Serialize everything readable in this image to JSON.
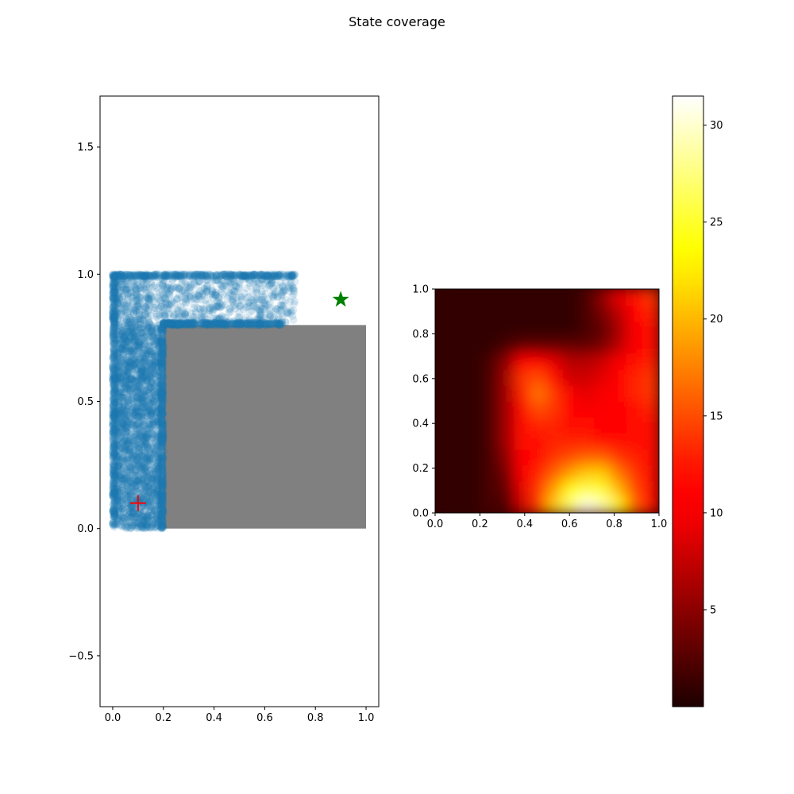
{
  "figure": {
    "suptitle": "State coverage"
  },
  "chart_data": [
    {
      "type": "scatter",
      "panel": "left",
      "title": "",
      "xlabel": "",
      "ylabel": "",
      "xlim": [
        -0.05,
        1.05
      ],
      "ylim": [
        -0.7,
        1.7
      ],
      "xticks": [
        0.0,
        0.2,
        0.4,
        0.6,
        0.8,
        1.0
      ],
      "xtick_labels": [
        "0.0",
        "0.2",
        "0.4",
        "0.6",
        "0.8",
        "1.0"
      ],
      "yticks": [
        -0.5,
        0.0,
        0.5,
        1.0,
        1.5
      ],
      "ytick_labels": [
        "−0.5",
        "0.0",
        "0.5",
        "1.0",
        "1.5"
      ],
      "grid": false,
      "colors": {
        "points": "#1f77b4",
        "obstacle": "#808080",
        "start": "#ff0000",
        "goal": "#008000"
      },
      "obstacle": {
        "x0": 0.2,
        "y0": 0.0,
        "x1": 1.0,
        "y1": 0.8
      },
      "start_marker": {
        "x": 0.1,
        "y": 0.1,
        "shape": "plus"
      },
      "goal_marker": {
        "x": 0.9,
        "y": 0.9,
        "shape": "star"
      },
      "visited_regions": [
        {
          "x0": 0.0,
          "x1": 0.2,
          "y0": 0.0,
          "y1": 0.8,
          "density": "dense"
        },
        {
          "x0": 0.0,
          "x1": 0.72,
          "y0": 0.8,
          "y1": 1.0,
          "density": "sparse"
        }
      ]
    },
    {
      "type": "heatmap",
      "panel": "right",
      "title": "",
      "xlabel": "",
      "ylabel": "",
      "colormap": "hot",
      "xlim": [
        0.0,
        1.0
      ],
      "ylim": [
        0.0,
        1.0
      ],
      "xticks": [
        0.0,
        0.2,
        0.4,
        0.6,
        0.8,
        1.0
      ],
      "xtick_labels": [
        "0.0",
        "0.2",
        "0.4",
        "0.6",
        "0.8",
        "1.0"
      ],
      "yticks": [
        0.0,
        0.2,
        0.4,
        0.6,
        0.8,
        1.0
      ],
      "ytick_labels": [
        "0.0",
        "0.2",
        "0.4",
        "0.6",
        "0.8",
        "1.0"
      ],
      "colorbar": {
        "min": 0.0,
        "max": 31.5,
        "ticks": [
          5,
          10,
          15,
          20,
          25,
          30
        ],
        "tick_labels": [
          "5",
          "10",
          "15",
          "20",
          "25",
          "30"
        ]
      },
      "grid_values_bottom_to_top": [
        [
          1,
          1,
          1,
          2,
          2,
          8,
          14,
          21,
          27,
          31,
          29,
          23,
          16,
          12
        ],
        [
          1,
          1,
          1,
          2,
          3,
          9,
          14,
          19,
          24,
          26,
          25,
          20,
          15,
          12
        ],
        [
          1,
          1,
          1,
          2,
          4,
          10,
          13,
          16,
          19,
          21,
          21,
          17,
          14,
          12
        ],
        [
          1,
          1,
          1,
          2,
          5,
          11,
          12,
          14,
          15,
          16,
          16,
          14,
          13,
          12
        ],
        [
          1,
          1,
          1,
          2,
          6,
          12,
          12,
          13,
          13,
          13,
          12,
          12,
          12,
          12
        ],
        [
          1,
          1,
          1,
          2,
          6,
          12,
          13,
          13,
          12,
          12,
          11,
          11,
          12,
          12
        ],
        [
          1,
          1,
          1,
          2,
          6,
          12,
          15,
          14,
          11,
          10,
          10,
          11,
          12,
          13
        ],
        [
          1,
          1,
          1,
          2,
          6,
          13,
          17,
          14,
          10,
          9,
          10,
          11,
          13,
          14
        ],
        [
          1,
          1,
          1,
          2,
          6,
          14,
          15,
          12,
          8,
          8,
          9,
          11,
          13,
          14
        ],
        [
          1,
          1,
          1,
          2,
          5,
          11,
          11,
          9,
          7,
          7,
          8,
          10,
          12,
          13
        ],
        [
          1,
          1,
          1,
          1,
          2,
          3,
          3,
          3,
          3,
          3,
          4,
          7,
          10,
          12
        ],
        [
          1,
          1,
          1,
          1,
          1,
          1,
          1,
          1,
          1,
          2,
          3,
          6,
          10,
          12
        ],
        [
          1,
          1,
          1,
          1,
          1,
          1,
          1,
          1,
          1,
          2,
          4,
          7,
          11,
          13
        ],
        [
          1,
          1,
          1,
          1,
          1,
          1,
          1,
          1,
          1,
          2,
          5,
          9,
          12,
          14
        ]
      ]
    }
  ]
}
